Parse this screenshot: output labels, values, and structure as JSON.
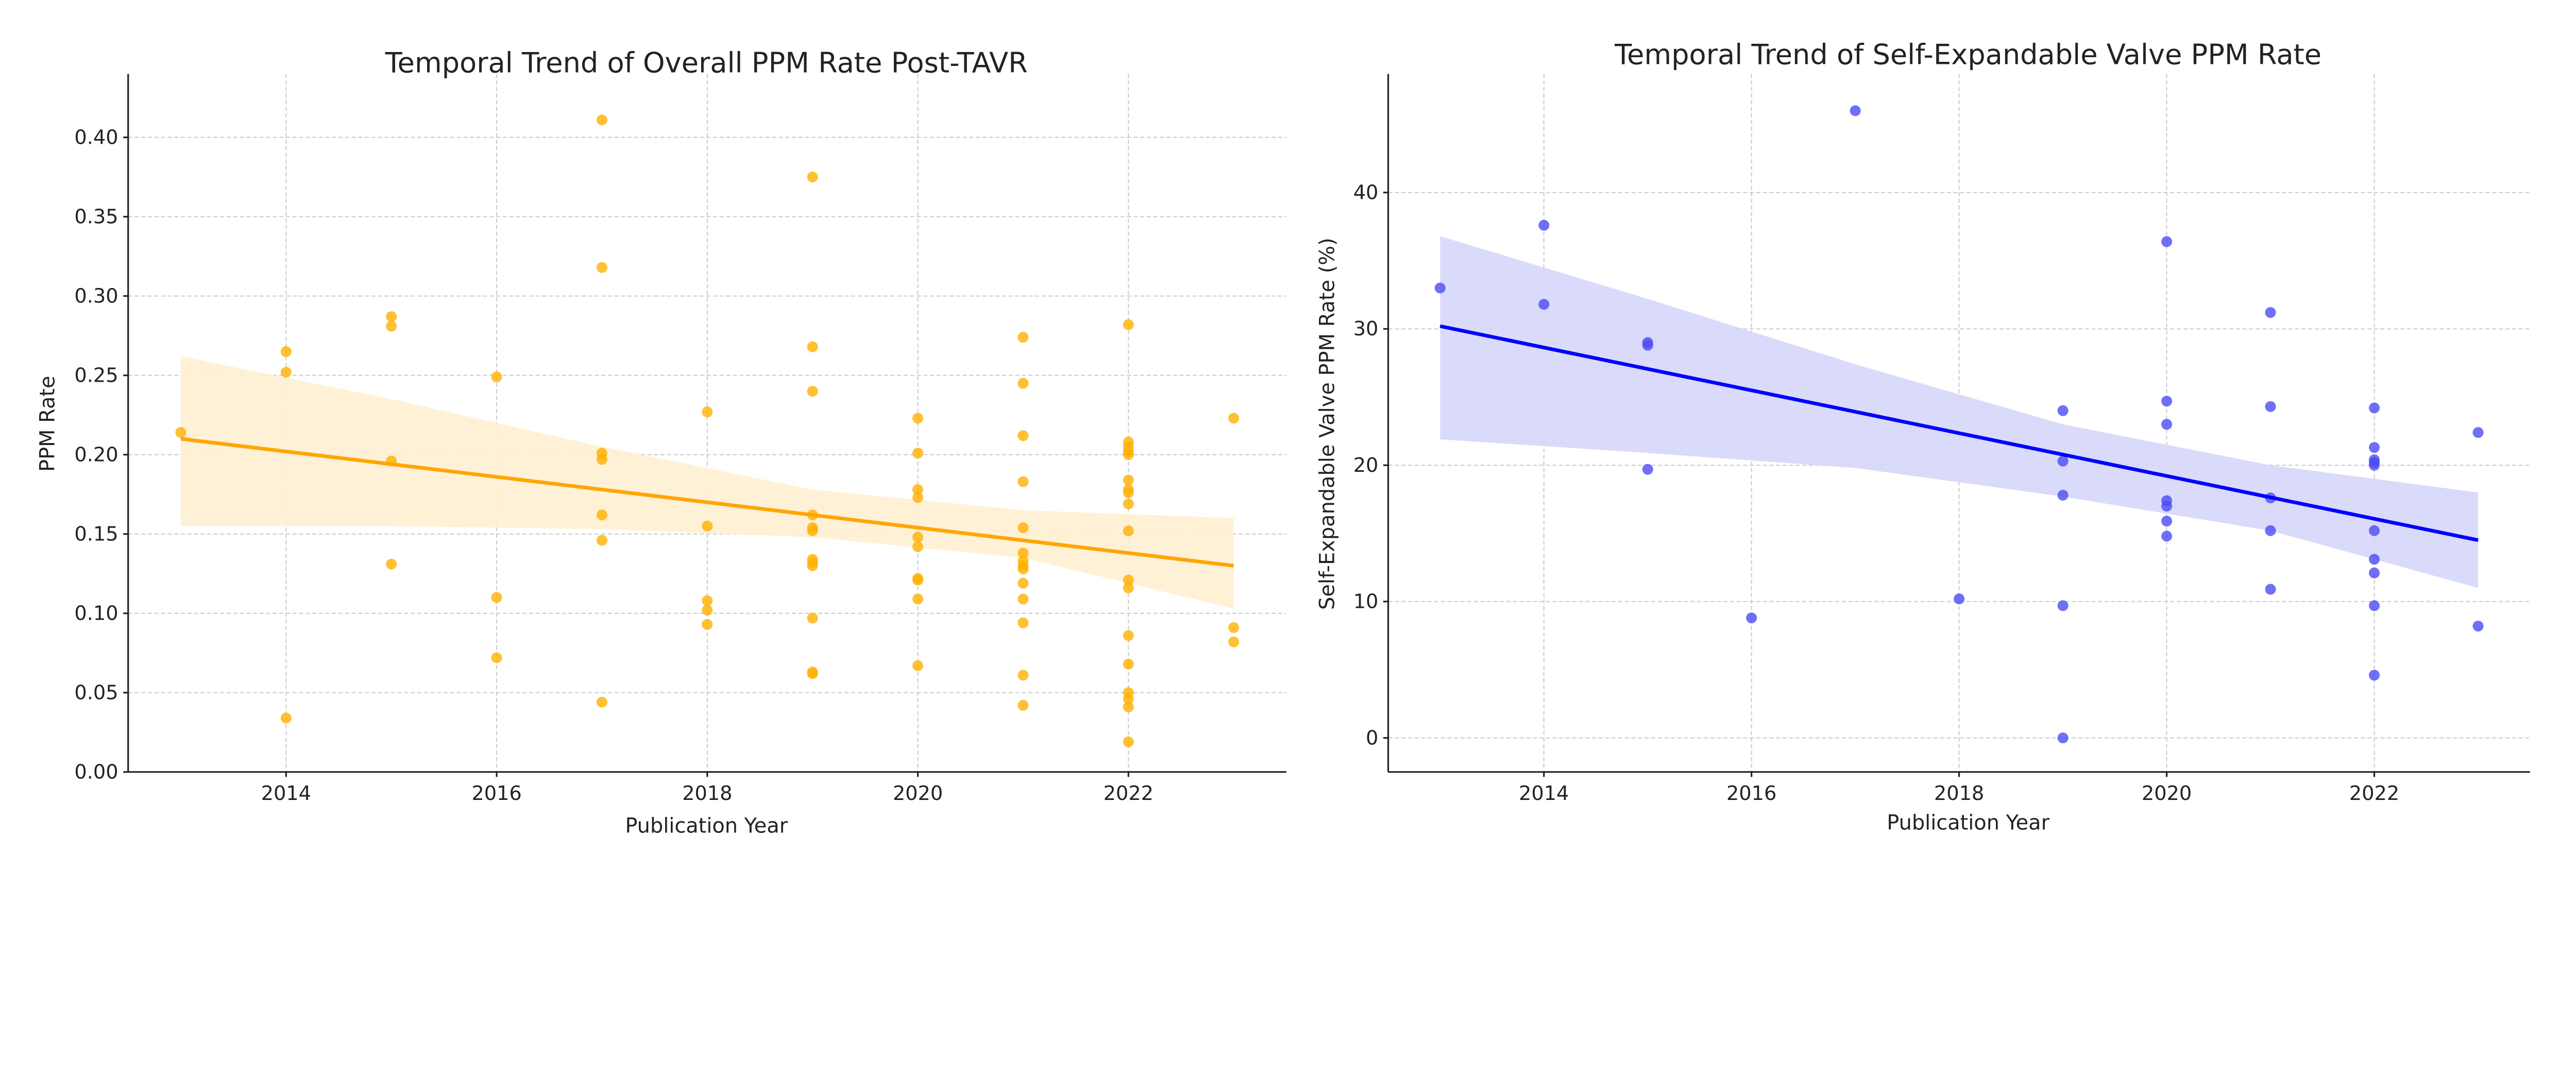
{
  "chart_data": [
    {
      "type": "scatter",
      "title": "Temporal Trend of Overall PPM Rate Post-TAVR",
      "xlabel": "Publication Year",
      "ylabel": "PPM Rate",
      "xlim": [
        2012.5,
        2023.5
      ],
      "ylim": [
        0,
        0.44
      ],
      "xticks": [
        2014,
        2016,
        2018,
        2020,
        2022
      ],
      "xtick_labels": [
        "2014",
        "2016",
        "2018",
        "2020",
        "2022"
      ],
      "yticks": [
        0,
        0.05,
        0.1,
        0.15,
        0.2,
        0.25,
        0.3,
        0.35,
        0.4
      ],
      "ytick_labels": [
        "0.00",
        "0.05",
        "0.10",
        "0.15",
        "0.20",
        "0.25",
        "0.30",
        "0.35",
        "0.40"
      ],
      "grid": true,
      "point_color": "#FFB000",
      "line_color": "#FFA500",
      "band_color": "#FFF0D0",
      "points": [
        [
          2013,
          0.214
        ],
        [
          2014,
          0.265
        ],
        [
          2014,
          0.252
        ],
        [
          2014,
          0.034
        ],
        [
          2015,
          0.287
        ],
        [
          2015,
          0.281
        ],
        [
          2015,
          0.196
        ],
        [
          2015,
          0.131
        ],
        [
          2016,
          0.249
        ],
        [
          2016,
          0.11
        ],
        [
          2016,
          0.072
        ],
        [
          2017,
          0.411
        ],
        [
          2017,
          0.318
        ],
        [
          2017,
          0.201
        ],
        [
          2017,
          0.197
        ],
        [
          2017,
          0.162
        ],
        [
          2017,
          0.146
        ],
        [
          2017,
          0.044
        ],
        [
          2018,
          0.227
        ],
        [
          2018,
          0.155
        ],
        [
          2018,
          0.108
        ],
        [
          2018,
          0.102
        ],
        [
          2018,
          0.093
        ],
        [
          2019,
          0.375
        ],
        [
          2019,
          0.268
        ],
        [
          2019,
          0.24
        ],
        [
          2019,
          0.162
        ],
        [
          2019,
          0.154
        ],
        [
          2019,
          0.152
        ],
        [
          2019,
          0.134
        ],
        [
          2019,
          0.132
        ],
        [
          2019,
          0.13
        ],
        [
          2019,
          0.097
        ],
        [
          2019,
          0.063
        ],
        [
          2019,
          0.062
        ],
        [
          2020,
          0.223
        ],
        [
          2020,
          0.201
        ],
        [
          2020,
          0.178
        ],
        [
          2020,
          0.173
        ],
        [
          2020,
          0.148
        ],
        [
          2020,
          0.142
        ],
        [
          2020,
          0.122
        ],
        [
          2020,
          0.121
        ],
        [
          2020,
          0.109
        ],
        [
          2020,
          0.067
        ],
        [
          2021,
          0.274
        ],
        [
          2021,
          0.245
        ],
        [
          2021,
          0.212
        ],
        [
          2021,
          0.183
        ],
        [
          2021,
          0.154
        ],
        [
          2021,
          0.138
        ],
        [
          2021,
          0.133
        ],
        [
          2021,
          0.13
        ],
        [
          2021,
          0.128
        ],
        [
          2021,
          0.119
        ],
        [
          2021,
          0.109
        ],
        [
          2021,
          0.094
        ],
        [
          2021,
          0.061
        ],
        [
          2021,
          0.042
        ],
        [
          2022,
          0.282
        ],
        [
          2022,
          0.208
        ],
        [
          2022,
          0.205
        ],
        [
          2022,
          0.202
        ],
        [
          2022,
          0.2
        ],
        [
          2022,
          0.184
        ],
        [
          2022,
          0.178
        ],
        [
          2022,
          0.176
        ],
        [
          2022,
          0.169
        ],
        [
          2022,
          0.152
        ],
        [
          2022,
          0.121
        ],
        [
          2022,
          0.116
        ],
        [
          2022,
          0.086
        ],
        [
          2022,
          0.068
        ],
        [
          2022,
          0.05
        ],
        [
          2022,
          0.046
        ],
        [
          2022,
          0.041
        ],
        [
          2022,
          0.019
        ],
        [
          2023,
          0.223
        ],
        [
          2023,
          0.091
        ],
        [
          2023,
          0.082
        ]
      ],
      "regression": {
        "x": [
          2013,
          2023
        ],
        "y": [
          0.21,
          0.13
        ]
      },
      "ci_band": {
        "x": [
          2013,
          2015,
          2017,
          2019,
          2021,
          2023
        ],
        "lower": [
          0.155,
          0.155,
          0.153,
          0.148,
          0.135,
          0.103
        ],
        "upper": [
          0.262,
          0.235,
          0.205,
          0.178,
          0.165,
          0.16
        ]
      }
    },
    {
      "type": "scatter",
      "title": "Temporal Trend of Self-Expandable Valve PPM Rate",
      "xlabel": "Publication Year",
      "ylabel": "Self-Expandable Valve PPM Rate (%)",
      "xlim": [
        2012.5,
        2023.5
      ],
      "ylim": [
        -2.5,
        48.7
      ],
      "xticks": [
        2014,
        2016,
        2018,
        2020,
        2022
      ],
      "xtick_labels": [
        "2014",
        "2016",
        "2018",
        "2020",
        "2022"
      ],
      "yticks": [
        0,
        10,
        20,
        30,
        40
      ],
      "ytick_labels": [
        "0",
        "10",
        "20",
        "30",
        "40"
      ],
      "grid": true,
      "point_color": "#4B4BF5",
      "line_color": "#0000FF",
      "band_color": "#D6D6FA",
      "points": [
        [
          2013,
          33.0
        ],
        [
          2014,
          37.6
        ],
        [
          2014,
          31.8
        ],
        [
          2015,
          29.0
        ],
        [
          2015,
          28.8
        ],
        [
          2015,
          19.7
        ],
        [
          2016,
          8.8
        ],
        [
          2017,
          46.0
        ],
        [
          2018,
          10.2
        ],
        [
          2019,
          24.0
        ],
        [
          2019,
          20.3
        ],
        [
          2019,
          17.8
        ],
        [
          2019,
          9.7
        ],
        [
          2019,
          0.0
        ],
        [
          2020,
          36.4
        ],
        [
          2020,
          24.7
        ],
        [
          2020,
          23.0
        ],
        [
          2020,
          17.4
        ],
        [
          2020,
          17.0
        ],
        [
          2020,
          15.9
        ],
        [
          2020,
          14.8
        ],
        [
          2021,
          31.2
        ],
        [
          2021,
          24.3
        ],
        [
          2021,
          17.6
        ],
        [
          2021,
          15.2
        ],
        [
          2021,
          10.9
        ],
        [
          2022,
          24.2
        ],
        [
          2022,
          21.3
        ],
        [
          2022,
          20.4
        ],
        [
          2022,
          20.2
        ],
        [
          2022,
          20.0
        ],
        [
          2022,
          15.2
        ],
        [
          2022,
          13.1
        ],
        [
          2022,
          12.1
        ],
        [
          2022,
          9.7
        ],
        [
          2022,
          4.6
        ],
        [
          2023,
          22.4
        ],
        [
          2023,
          8.2
        ]
      ],
      "regression": {
        "x": [
          2013,
          2023
        ],
        "y": [
          30.2,
          14.5
        ]
      },
      "ci_band": {
        "x": [
          2013,
          2015,
          2017,
          2019,
          2021,
          2023
        ],
        "lower": [
          21.9,
          20.9,
          19.8,
          17.7,
          15.2,
          11.0
        ],
        "upper": [
          36.8,
          32.2,
          27.4,
          23.0,
          20.0,
          18.0
        ]
      }
    }
  ]
}
